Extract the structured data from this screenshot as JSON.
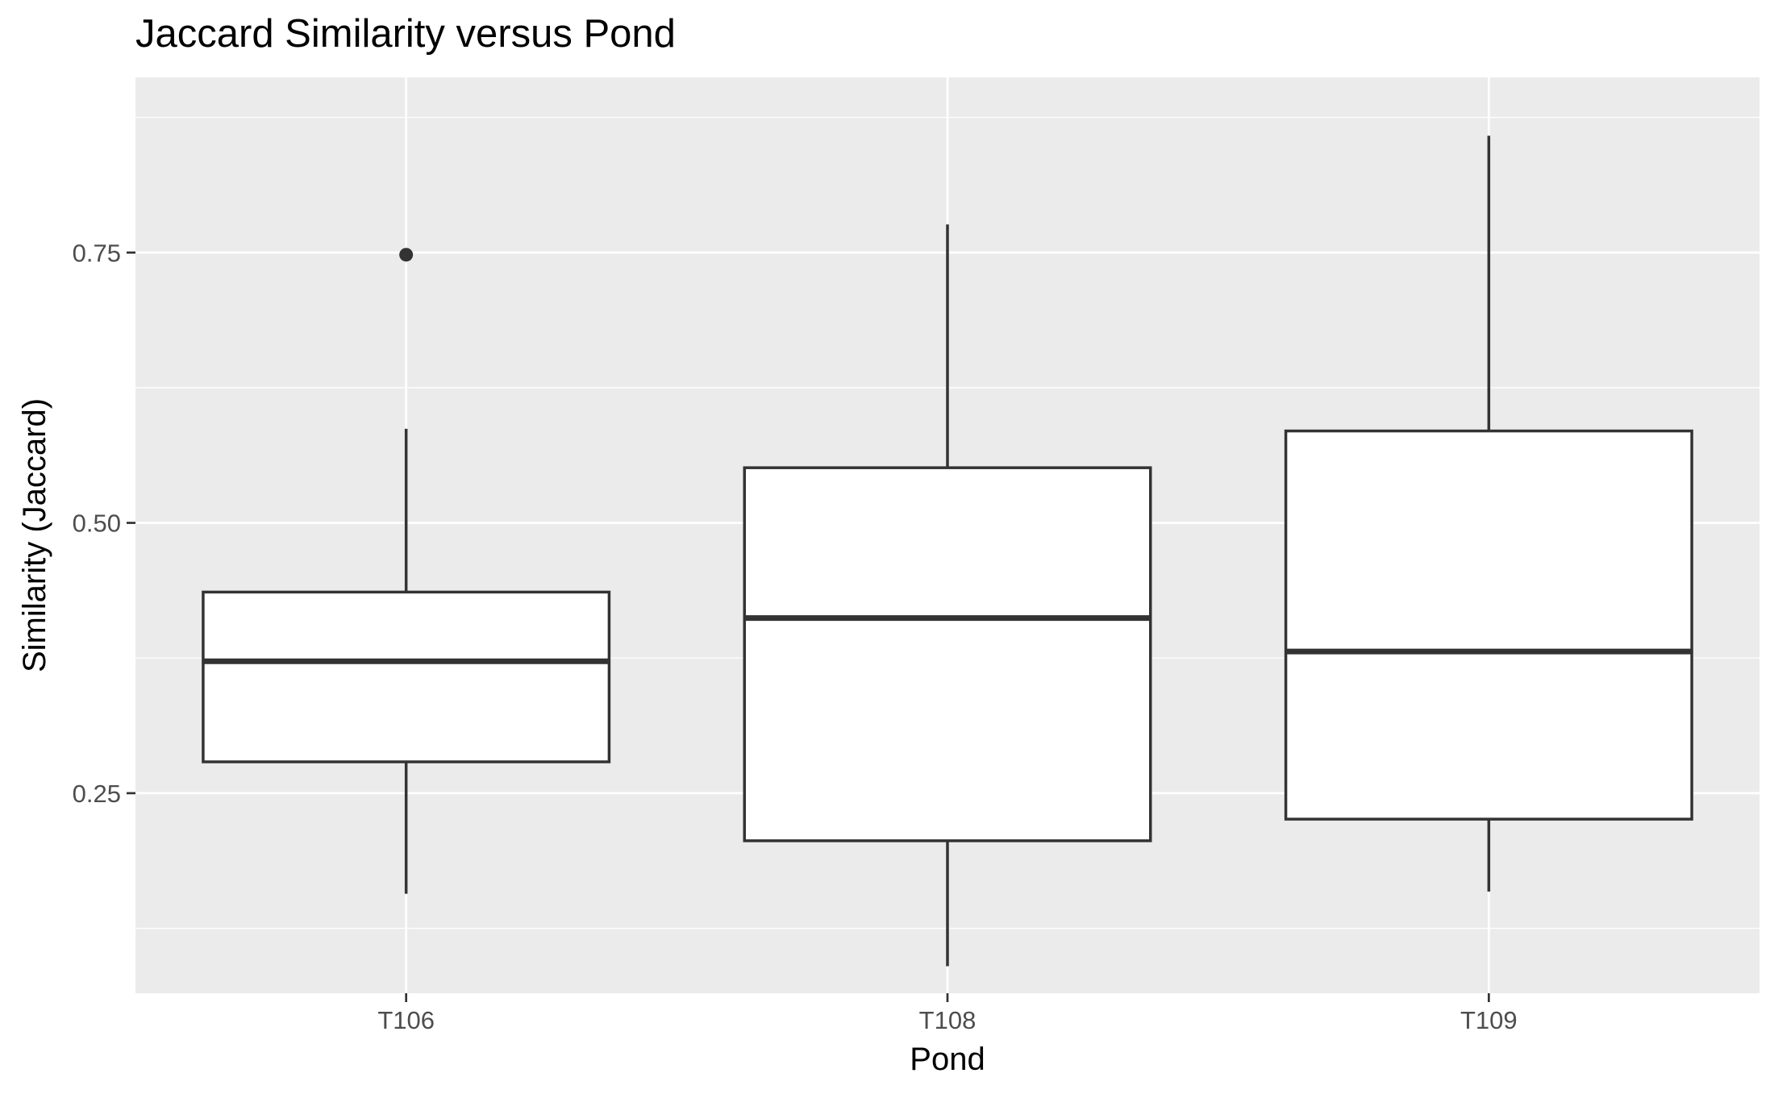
{
  "chart_data": {
    "type": "boxplot",
    "title": "Jaccard Similarity versus Pond",
    "xlabel": "Pond",
    "ylabel": "Similarity (Jaccard)",
    "categories": [
      "T106",
      "T108",
      "T109"
    ],
    "boxes": [
      {
        "category": "T106",
        "whisker_low": 0.157,
        "q1": 0.279,
        "median": 0.372,
        "q3": 0.436,
        "whisker_high": 0.587,
        "outliers": [
          0.748
        ]
      },
      {
        "category": "T108",
        "whisker_low": 0.09,
        "q1": 0.206,
        "median": 0.412,
        "q3": 0.551,
        "whisker_high": 0.776,
        "outliers": []
      },
      {
        "category": "T109",
        "whisker_low": 0.159,
        "q1": 0.226,
        "median": 0.381,
        "q3": 0.585,
        "whisker_high": 0.858,
        "outliers": []
      }
    ],
    "ylim": [
      0.065,
      0.912
    ],
    "yticks": [
      0.25,
      0.5,
      0.75
    ],
    "ytick_labels": [
      "0.25",
      "0.50",
      "0.75"
    ],
    "yminor": [
      0.125,
      0.375,
      0.625,
      0.875
    ],
    "grid": true,
    "legend": "none",
    "colors": {
      "panel": "#EBEBEB",
      "grid": "#FFFFFF",
      "box_fill": "#FFFFFF",
      "line": "#333333",
      "text": "#4D4D4D",
      "title": "#000000"
    }
  }
}
